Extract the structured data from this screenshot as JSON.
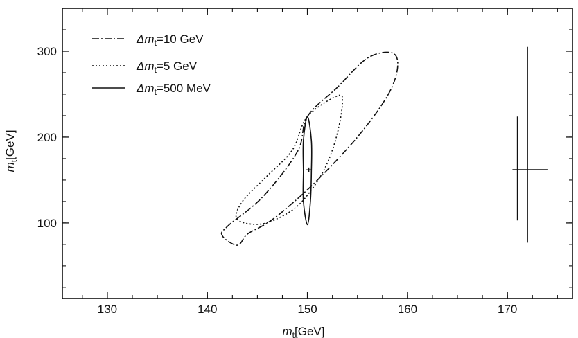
{
  "chart_data": {
    "type": "line",
    "title": "",
    "xlabel": {
      "symbol": "m",
      "subscript": "t",
      "unit": "[GeV]"
    },
    "ylabel": {
      "symbol": "m",
      "subscript": "t",
      "unit": "[GeV]"
    },
    "xlim": [
      125.5,
      176.5
    ],
    "ylim": [
      12,
      350
    ],
    "xticks": [
      130,
      140,
      150,
      160,
      170
    ],
    "yticks": [
      100,
      200,
      300
    ],
    "x_minor_step": 2.5,
    "y_minor_step": 25,
    "grid": false,
    "legend_position": "top-left",
    "series": [
      {
        "name": {
          "prefix": "Δm",
          "subscript": "t",
          "suffix": "=10 GeV"
        },
        "style": "dash-dot",
        "points": [
          [
            150,
            224
          ],
          [
            153,
            258
          ],
          [
            156,
            292
          ],
          [
            158.5,
            298
          ],
          [
            159,
            280
          ],
          [
            158,
            248
          ],
          [
            155,
            200
          ],
          [
            151,
            150
          ],
          [
            148,
            118
          ],
          [
            146,
            100
          ],
          [
            144,
            87
          ],
          [
            143,
            74
          ],
          [
            141.5,
            85
          ],
          [
            142,
            96
          ],
          [
            145.5,
            130
          ],
          [
            149,
            183
          ],
          [
            150,
            224
          ]
        ]
      },
      {
        "name": {
          "prefix": "Δm",
          "subscript": "t",
          "suffix": "=5 GeV"
        },
        "style": "dotted",
        "points": [
          [
            150,
            224
          ],
          [
            153,
            248
          ],
          [
            153.5,
            240
          ],
          [
            153,
            205
          ],
          [
            152,
            170
          ],
          [
            150.5,
            140
          ],
          [
            148.5,
            115
          ],
          [
            145.5,
            99
          ],
          [
            143,
            104
          ],
          [
            143.5,
            125
          ],
          [
            146,
            155
          ],
          [
            148.5,
            185
          ],
          [
            150,
            224
          ]
        ]
      },
      {
        "name": {
          "prefix": "Δm",
          "subscript": "t",
          "suffix": "=500 MeV"
        },
        "style": "solid",
        "points": [
          [
            150,
            224
          ],
          [
            150.4,
            196
          ],
          [
            150.4,
            160
          ],
          [
            150.3,
            125
          ],
          [
            150,
            98
          ],
          [
            149.6,
            125
          ],
          [
            149.6,
            160
          ],
          [
            149.6,
            196
          ],
          [
            150,
            224
          ]
        ]
      }
    ],
    "central_marker": {
      "x": 150,
      "y": 162,
      "symbol": "+"
    },
    "error_crosses": [
      {
        "x": 172,
        "x_err": [
          170.5,
          174
        ],
        "y": 162,
        "y_err": [
          77,
          305
        ]
      },
      {
        "x": 171,
        "y_err": [
          103,
          224
        ]
      }
    ]
  }
}
